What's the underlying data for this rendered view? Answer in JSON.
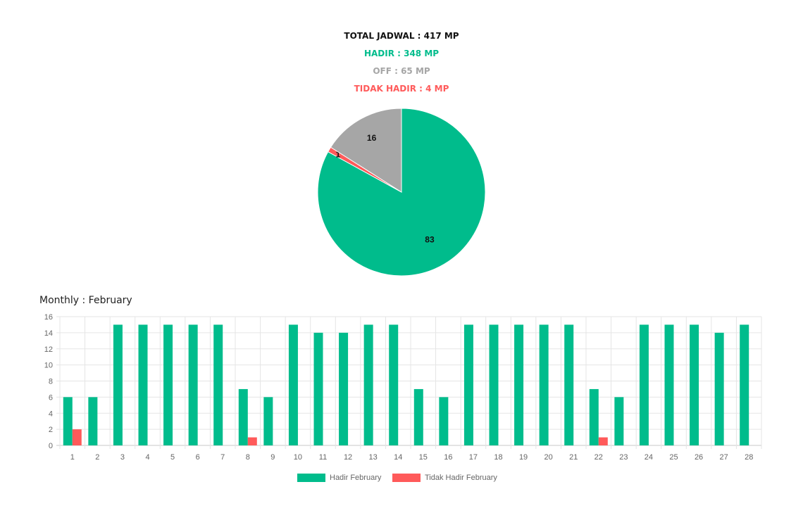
{
  "summary": {
    "total": "TOTAL JADWAL : 417 MP",
    "hadir": "HADIR : 348 MP",
    "off": "OFF : 65 MP",
    "tidak_hadir": "TIDAK HADIR : 4 MP"
  },
  "colors": {
    "hadir": "#00BC8C",
    "off": "#A6A6A6",
    "tidak_hadir": "#FF5A5A",
    "grid": "#E5E5E5"
  },
  "monthly_title": "Monthly : February",
  "chart_data": [
    {
      "type": "pie",
      "slices": [
        {
          "key": "hadir",
          "value": 83,
          "label": "83"
        },
        {
          "key": "tidak_hadir",
          "value": 1,
          "label": "1"
        },
        {
          "key": "off",
          "value": 16,
          "label": "16"
        }
      ]
    },
    {
      "type": "bar",
      "title": "Monthly : February",
      "categories": [
        "1",
        "2",
        "3",
        "4",
        "5",
        "6",
        "7",
        "8",
        "9",
        "10",
        "11",
        "12",
        "13",
        "14",
        "15",
        "16",
        "17",
        "18",
        "19",
        "20",
        "21",
        "22",
        "23",
        "24",
        "25",
        "26",
        "27",
        "28"
      ],
      "series": [
        {
          "name": "Hadir February",
          "color_key": "hadir",
          "values": [
            6,
            6,
            15,
            15,
            15,
            15,
            15,
            7,
            6,
            15,
            14,
            14,
            15,
            15,
            7,
            6,
            15,
            15,
            15,
            15,
            15,
            7,
            6,
            15,
            15,
            15,
            14,
            15
          ]
        },
        {
          "name": "Tidak Hadir February",
          "color_key": "tidak_hadir",
          "values": [
            2,
            0,
            0,
            0,
            0,
            0,
            0,
            1,
            0,
            0,
            0,
            0,
            0,
            0,
            0,
            0,
            0,
            0,
            0,
            0,
            0,
            1,
            0,
            0,
            0,
            0,
            0,
            0
          ]
        }
      ],
      "ylim": [
        0,
        16
      ],
      "yticks": [
        0,
        2,
        4,
        6,
        8,
        10,
        12,
        14,
        16
      ],
      "grid": true,
      "legend_position": "bottom"
    }
  ]
}
